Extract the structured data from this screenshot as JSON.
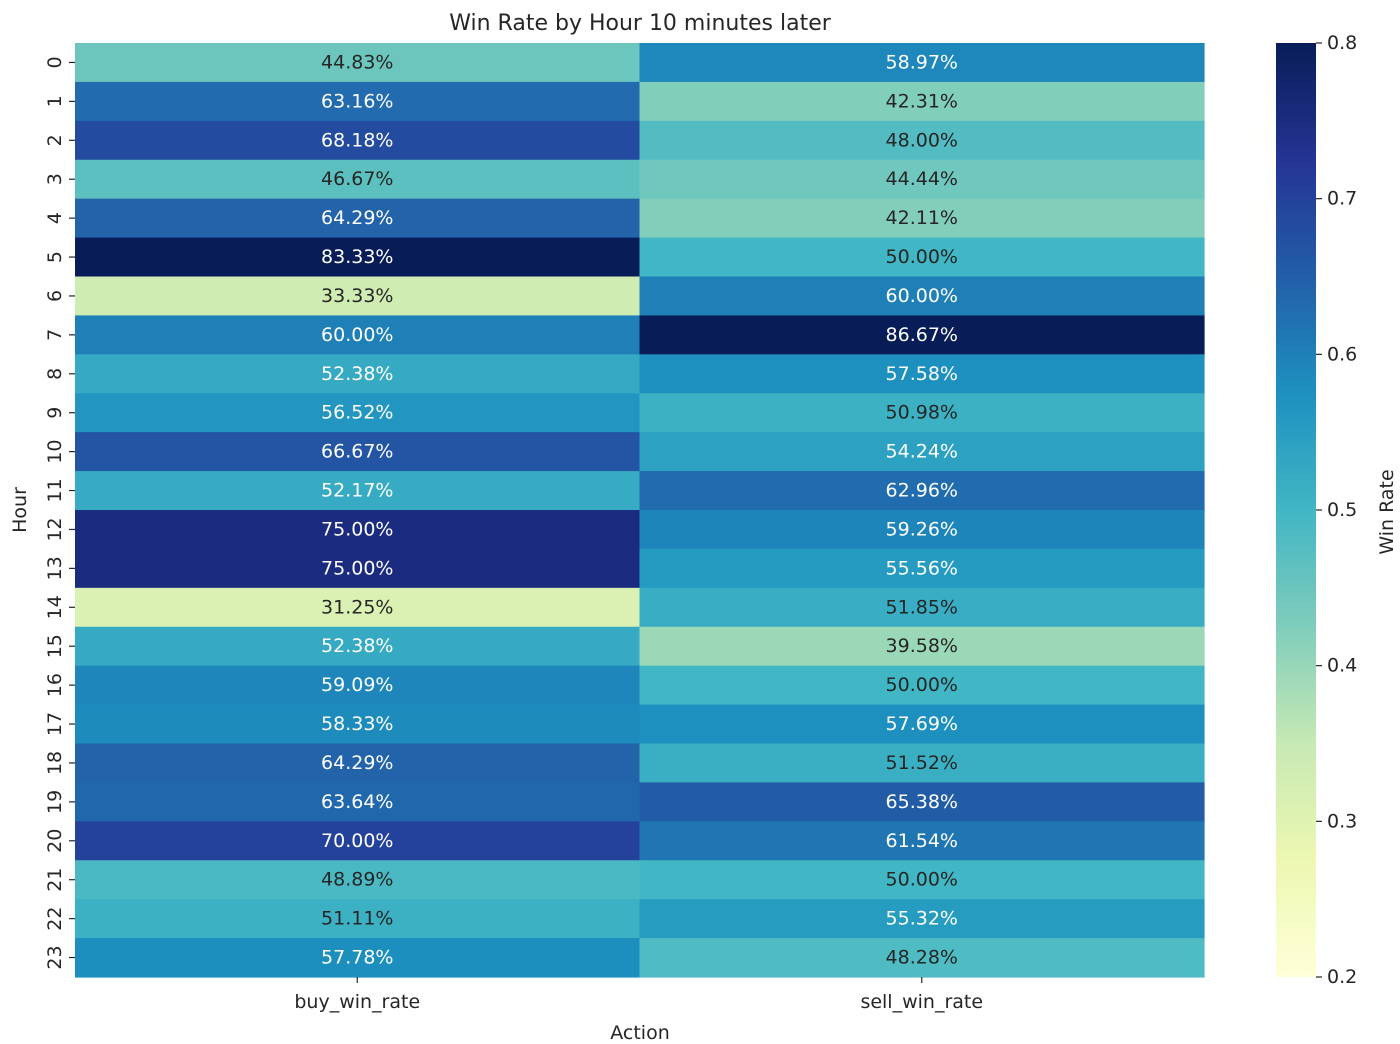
{
  "chart_data": {
    "type": "heatmap",
    "title": "Win Rate by Hour 10 minutes later",
    "xlabel": "Action",
    "ylabel": "Hour",
    "colorbar_label": "Win Rate",
    "colormap": "YlGnBu",
    "vmin": 0.2,
    "vmax": 0.8,
    "colorbar_ticks": [
      "0.2",
      "0.3",
      "0.4",
      "0.5",
      "0.6",
      "0.7",
      "0.8"
    ],
    "columns": [
      "buy_win_rate",
      "sell_win_rate"
    ],
    "rows": [
      "0",
      "1",
      "2",
      "3",
      "4",
      "5",
      "6",
      "7",
      "8",
      "9",
      "10",
      "11",
      "12",
      "13",
      "14",
      "15",
      "16",
      "17",
      "18",
      "19",
      "20",
      "21",
      "22",
      "23"
    ],
    "values": [
      [
        0.4483,
        0.5897
      ],
      [
        0.6316,
        0.4231
      ],
      [
        0.6818,
        0.48
      ],
      [
        0.4667,
        0.4444
      ],
      [
        0.6429,
        0.4211
      ],
      [
        0.8333,
        0.5
      ],
      [
        0.3333,
        0.6
      ],
      [
        0.6,
        0.8667
      ],
      [
        0.5238,
        0.5758
      ],
      [
        0.5652,
        0.5098
      ],
      [
        0.6667,
        0.5424
      ],
      [
        0.5217,
        0.6296
      ],
      [
        0.75,
        0.5926
      ],
      [
        0.75,
        0.5556
      ],
      [
        0.3125,
        0.5185
      ],
      [
        0.5238,
        0.3958
      ],
      [
        0.5909,
        0.5
      ],
      [
        0.5833,
        0.5769
      ],
      [
        0.6429,
        0.5152
      ],
      [
        0.6364,
        0.6538
      ],
      [
        0.7,
        0.6154
      ],
      [
        0.4889,
        0.5
      ],
      [
        0.5111,
        0.5532
      ],
      [
        0.5778,
        0.4828
      ]
    ],
    "labels": [
      [
        "44.83%",
        "58.97%"
      ],
      [
        "63.16%",
        "42.31%"
      ],
      [
        "68.18%",
        "48.00%"
      ],
      [
        "46.67%",
        "44.44%"
      ],
      [
        "64.29%",
        "42.11%"
      ],
      [
        "83.33%",
        "50.00%"
      ],
      [
        "33.33%",
        "60.00%"
      ],
      [
        "60.00%",
        "86.67%"
      ],
      [
        "52.38%",
        "57.58%"
      ],
      [
        "56.52%",
        "50.98%"
      ],
      [
        "66.67%",
        "54.24%"
      ],
      [
        "52.17%",
        "62.96%"
      ],
      [
        "75.00%",
        "59.26%"
      ],
      [
        "75.00%",
        "55.56%"
      ],
      [
        "31.25%",
        "51.85%"
      ],
      [
        "52.38%",
        "39.58%"
      ],
      [
        "59.09%",
        "50.00%"
      ],
      [
        "58.33%",
        "57.69%"
      ],
      [
        "64.29%",
        "51.52%"
      ],
      [
        "63.64%",
        "65.38%"
      ],
      [
        "70.00%",
        "61.54%"
      ],
      [
        "48.89%",
        "50.00%"
      ],
      [
        "51.11%",
        "55.32%"
      ],
      [
        "57.78%",
        "48.28%"
      ]
    ]
  }
}
